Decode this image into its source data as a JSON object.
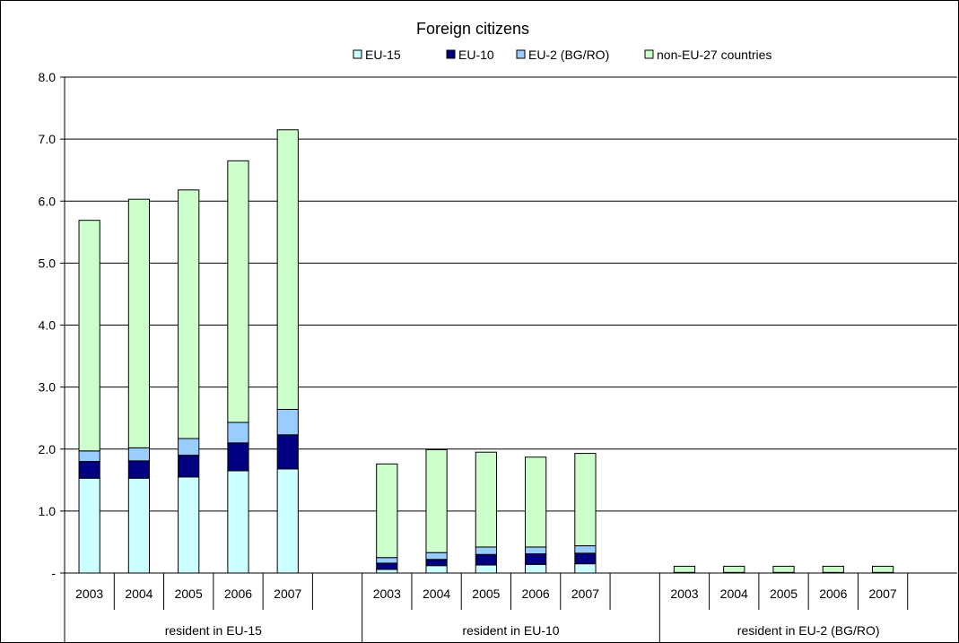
{
  "chart_data": {
    "type": "bar",
    "stacked": true,
    "title": "Foreign citizens",
    "ylim": [
      0,
      8
    ],
    "yticks": [
      "-",
      "1.0",
      "2.0",
      "3.0",
      "4.0",
      "5.0",
      "6.0",
      "7.0",
      "8.0"
    ],
    "grid": true,
    "legend_position": "top",
    "groups": [
      {
        "label": "resident in EU-15",
        "categories": [
          "2003",
          "2004",
          "2005",
          "2006",
          "2007"
        ]
      },
      {
        "label": "resident in EU-10",
        "categories": [
          "2003",
          "2004",
          "2005",
          "2006",
          "2007"
        ]
      },
      {
        "label": "resident in EU-2 (BG/RO)",
        "categories": [
          "2003",
          "2004",
          "2005",
          "2006",
          "2007"
        ]
      }
    ],
    "series": [
      {
        "name": "EU-15",
        "color": "#ccffff",
        "values": [
          [
            1.53,
            1.53,
            1.55,
            1.65,
            1.68
          ],
          [
            0.06,
            0.12,
            0.13,
            0.14,
            0.15
          ],
          [
            0.01,
            0.01,
            0.01,
            0.01,
            0.01
          ]
        ]
      },
      {
        "name": "EU-10",
        "color": "#000080",
        "values": [
          [
            0.27,
            0.28,
            0.35,
            0.45,
            0.55
          ],
          [
            0.1,
            0.1,
            0.17,
            0.17,
            0.17
          ],
          [
            0.0,
            0.0,
            0.0,
            0.0,
            0.0
          ]
        ]
      },
      {
        "name": "EU-2 (BG/RO)",
        "color": "#99ccff",
        "values": [
          [
            0.17,
            0.21,
            0.27,
            0.33,
            0.41
          ],
          [
            0.09,
            0.11,
            0.12,
            0.11,
            0.12
          ],
          [
            0.0,
            0.0,
            0.0,
            0.0,
            0.0
          ]
        ]
      },
      {
        "name": "non-EU-27 countries",
        "color": "#ccffcc",
        "values": [
          [
            3.72,
            4.01,
            4.01,
            4.22,
            4.51
          ],
          [
            1.51,
            1.66,
            1.53,
            1.45,
            1.49
          ],
          [
            0.1,
            0.1,
            0.1,
            0.1,
            0.1
          ]
        ]
      }
    ]
  }
}
